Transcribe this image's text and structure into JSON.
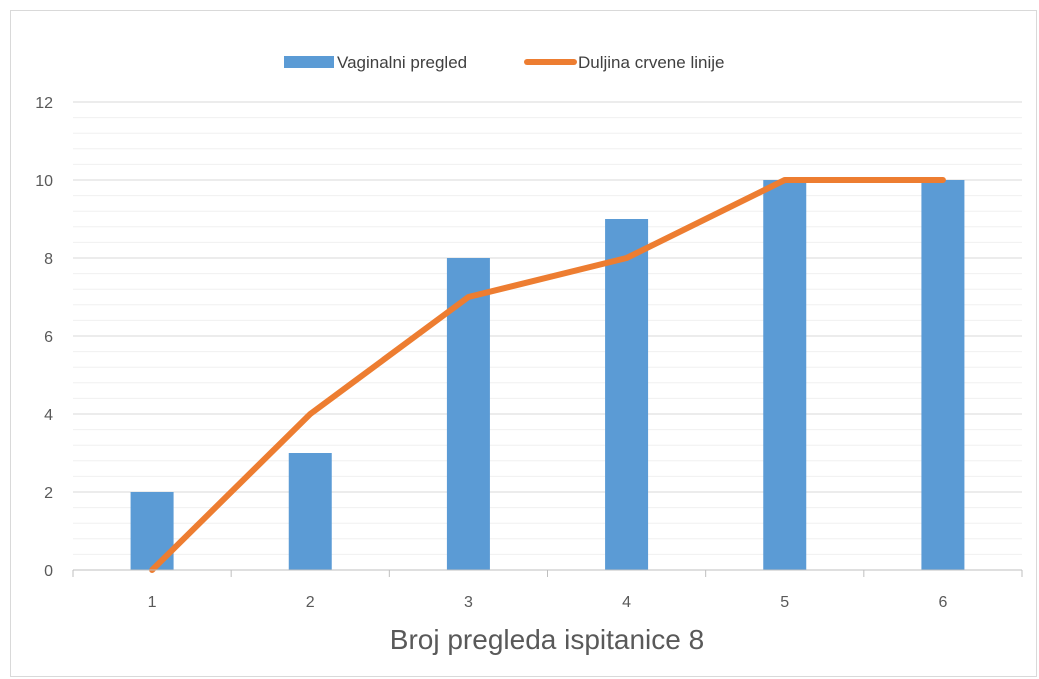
{
  "colors": {
    "bar": "#5b9bd5",
    "line": "#ed7d31",
    "grid_major": "#d9d9d9",
    "grid_minor": "#f0f0f0",
    "axis": "#bfbfbf"
  },
  "chart_data": {
    "type": "bar",
    "title": "",
    "xlabel": "Broj pregleda ispitanice 8",
    "ylabel": "",
    "categories": [
      "1",
      "2",
      "3",
      "4",
      "5",
      "6"
    ],
    "ylim": [
      0,
      12
    ],
    "yticks": [
      "0",
      "2",
      "4",
      "6",
      "8",
      "10",
      "12"
    ],
    "minor_gridlines": true,
    "legend_position": "top",
    "series": [
      {
        "name": "Vaginalni pregled",
        "type": "bar",
        "values": [
          2,
          3,
          8,
          9,
          10,
          10
        ]
      },
      {
        "name": "Duljina crvene linije",
        "type": "line",
        "values": [
          0,
          4,
          7,
          8,
          10,
          10
        ]
      }
    ]
  }
}
